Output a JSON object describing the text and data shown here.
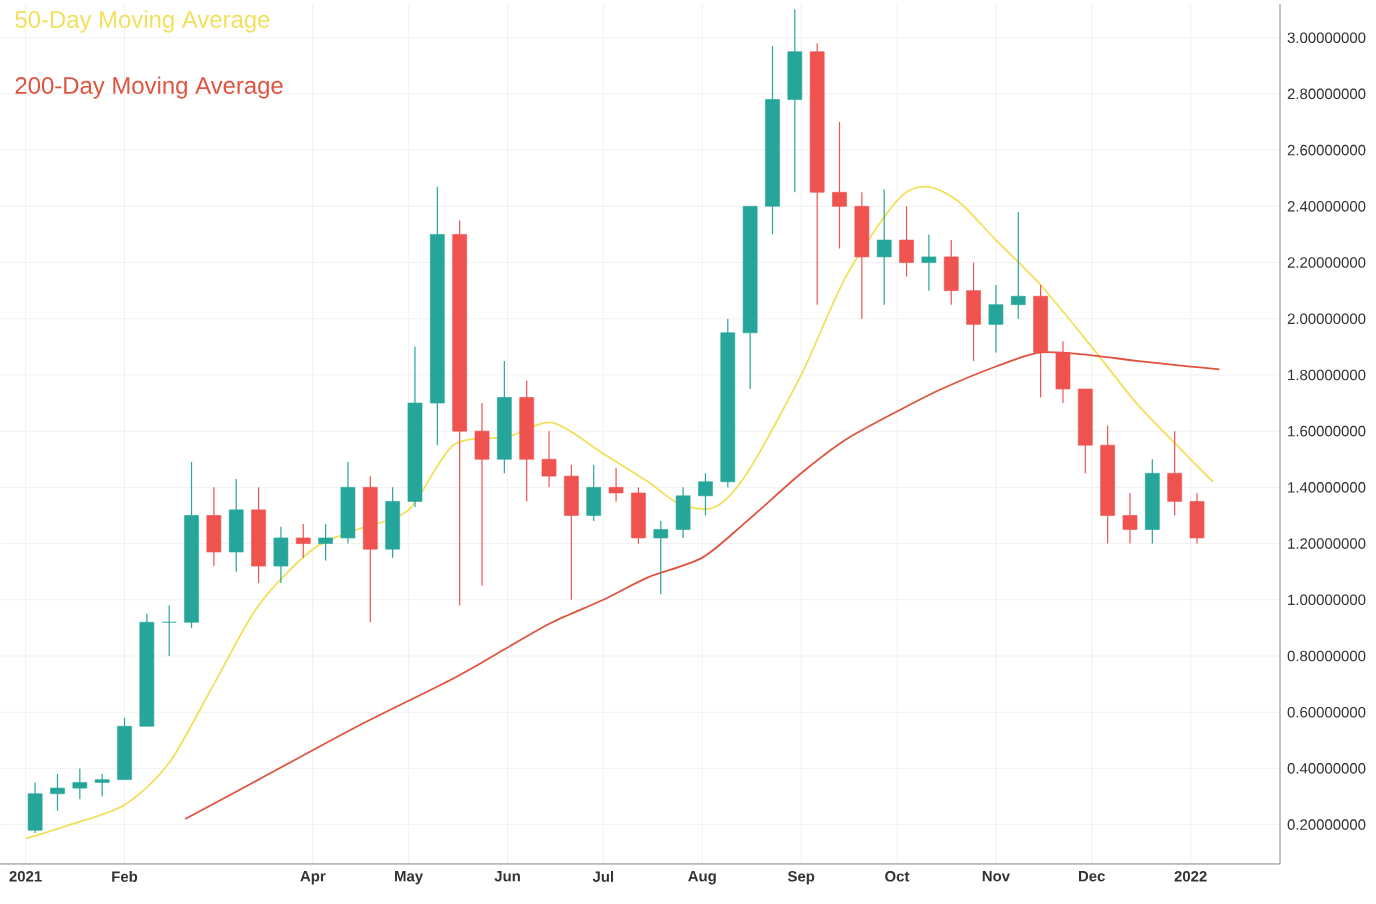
{
  "chart_data": {
    "type": "candlestick",
    "x": [
      "2021-01-04",
      "2021-01-11",
      "2021-01-18",
      "2021-01-25",
      "2021-02-01",
      "2021-02-08",
      "2021-02-15",
      "2021-02-22",
      "2021-03-01",
      "2021-03-08",
      "2021-03-15",
      "2021-03-22",
      "2021-03-29",
      "2021-04-05",
      "2021-04-12",
      "2021-04-19",
      "2021-04-26",
      "2021-05-03",
      "2021-05-10",
      "2021-05-17",
      "2021-05-24",
      "2021-05-31",
      "2021-06-07",
      "2021-06-14",
      "2021-06-21",
      "2021-06-28",
      "2021-07-05",
      "2021-07-12",
      "2021-07-19",
      "2021-07-26",
      "2021-08-02",
      "2021-08-09",
      "2021-08-16",
      "2021-08-23",
      "2021-08-30",
      "2021-09-06",
      "2021-09-13",
      "2021-09-20",
      "2021-09-27",
      "2021-10-04",
      "2021-10-11",
      "2021-10-18",
      "2021-10-25",
      "2021-11-01",
      "2021-11-08",
      "2021-11-15",
      "2021-11-22",
      "2021-11-29",
      "2021-12-06",
      "2021-12-13",
      "2021-12-20",
      "2021-12-27",
      "2022-01-03"
    ],
    "ohlc": [
      [
        0.18,
        0.35,
        0.17,
        0.31
      ],
      [
        0.31,
        0.38,
        0.25,
        0.33
      ],
      [
        0.33,
        0.4,
        0.29,
        0.35
      ],
      [
        0.35,
        0.38,
        0.3,
        0.36
      ],
      [
        0.36,
        0.58,
        0.36,
        0.55
      ],
      [
        0.55,
        0.95,
        0.55,
        0.92
      ],
      [
        0.92,
        0.98,
        0.8,
        0.92
      ],
      [
        0.92,
        1.49,
        0.9,
        1.3
      ],
      [
        1.3,
        1.4,
        1.12,
        1.17
      ],
      [
        1.17,
        1.43,
        1.1,
        1.32
      ],
      [
        1.32,
        1.4,
        1.06,
        1.12
      ],
      [
        1.12,
        1.26,
        1.06,
        1.22
      ],
      [
        1.22,
        1.27,
        1.15,
        1.2
      ],
      [
        1.2,
        1.27,
        1.14,
        1.22
      ],
      [
        1.22,
        1.49,
        1.2,
        1.4
      ],
      [
        1.4,
        1.44,
        0.92,
        1.18
      ],
      [
        1.18,
        1.4,
        1.15,
        1.35
      ],
      [
        1.35,
        1.9,
        1.33,
        1.7
      ],
      [
        1.7,
        2.47,
        1.55,
        2.3
      ],
      [
        2.3,
        2.35,
        0.98,
        1.6
      ],
      [
        1.6,
        1.7,
        1.05,
        1.5
      ],
      [
        1.5,
        1.85,
        1.45,
        1.72
      ],
      [
        1.72,
        1.78,
        1.35,
        1.5
      ],
      [
        1.5,
        1.6,
        1.4,
        1.44
      ],
      [
        1.44,
        1.48,
        1.0,
        1.3
      ],
      [
        1.3,
        1.48,
        1.28,
        1.4
      ],
      [
        1.4,
        1.47,
        1.35,
        1.38
      ],
      [
        1.38,
        1.4,
        1.2,
        1.22
      ],
      [
        1.22,
        1.28,
        1.02,
        1.25
      ],
      [
        1.25,
        1.4,
        1.22,
        1.37
      ],
      [
        1.37,
        1.45,
        1.3,
        1.42
      ],
      [
        1.42,
        2.0,
        1.4,
        1.95
      ],
      [
        1.95,
        2.4,
        1.75,
        2.4
      ],
      [
        2.4,
        2.97,
        2.3,
        2.78
      ],
      [
        2.78,
        3.1,
        2.45,
        2.95
      ],
      [
        2.95,
        2.98,
        2.05,
        2.45
      ],
      [
        2.45,
        2.7,
        2.25,
        2.4
      ],
      [
        2.4,
        2.45,
        2.0,
        2.22
      ],
      [
        2.22,
        2.46,
        2.05,
        2.28
      ],
      [
        2.28,
        2.4,
        2.15,
        2.2
      ],
      [
        2.2,
        2.3,
        2.1,
        2.22
      ],
      [
        2.22,
        2.28,
        2.05,
        2.1
      ],
      [
        2.1,
        2.2,
        1.85,
        1.98
      ],
      [
        1.98,
        2.12,
        1.88,
        2.05
      ],
      [
        2.05,
        2.38,
        2.0,
        2.08
      ],
      [
        2.08,
        2.12,
        1.72,
        1.88
      ],
      [
        1.88,
        1.92,
        1.7,
        1.75
      ],
      [
        1.75,
        1.75,
        1.45,
        1.55
      ],
      [
        1.55,
        1.62,
        1.2,
        1.3
      ],
      [
        1.3,
        1.38,
        1.2,
        1.25
      ],
      [
        1.25,
        1.5,
        1.2,
        1.45
      ],
      [
        1.45,
        1.6,
        1.3,
        1.35
      ],
      [
        1.35,
        1.38,
        1.2,
        1.22
      ]
    ],
    "colors": [
      "#26a69a",
      "#26a69a",
      "#26a69a",
      "#26a69a",
      "#26a69a",
      "#26a69a",
      "#26a69a",
      "#26a69a",
      "#ef5350",
      "#26a69a",
      "#ef5350",
      "#26a69a",
      "#ef5350",
      "#26a69a",
      "#26a69a",
      "#ef5350",
      "#26a69a",
      "#26a69a",
      "#26a69a",
      "#ef5350",
      "#ef5350",
      "#26a69a",
      "#ef5350",
      "#ef5350",
      "#ef5350",
      "#26a69a",
      "#ef5350",
      "#ef5350",
      "#26a69a",
      "#26a69a",
      "#26a69a",
      "#26a69a",
      "#26a69a",
      "#26a69a",
      "#26a69a",
      "#ef5350",
      "#ef5350",
      "#ef5350",
      "#26a69a",
      "#ef5350",
      "#26a69a",
      "#ef5350",
      "#ef5350",
      "#26a69a",
      "#26a69a",
      "#ef5350",
      "#ef5350",
      "#ef5350",
      "#ef5350",
      "#ef5350",
      "#26a69a",
      "#ef5350",
      "#ef5350"
    ],
    "series": [
      {
        "name": "50-Day Moving Average",
        "type": "line",
        "color": "#f2df5a",
        "x": [
          "2021-01-01",
          "2021-01-15",
          "2021-02-01",
          "2021-02-15",
          "2021-03-01",
          "2021-03-15",
          "2021-04-01",
          "2021-04-15",
          "2021-05-01",
          "2021-05-15",
          "2021-06-01",
          "2021-06-15",
          "2021-07-01",
          "2021-07-15",
          "2021-07-25",
          "2021-08-05",
          "2021-08-15",
          "2021-09-01",
          "2021-09-15",
          "2021-10-01",
          "2021-10-10",
          "2021-10-20",
          "2021-11-01",
          "2021-11-15",
          "2021-12-01",
          "2021-12-15",
          "2022-01-01",
          "2022-01-08"
        ],
        "values": [
          0.15,
          0.2,
          0.27,
          0.42,
          0.7,
          0.98,
          1.18,
          1.25,
          1.32,
          1.55,
          1.58,
          1.63,
          1.52,
          1.42,
          1.34,
          1.33,
          1.45,
          1.8,
          2.15,
          2.42,
          2.47,
          2.42,
          2.28,
          2.12,
          1.9,
          1.7,
          1.5,
          1.42
        ]
      },
      {
        "name": "200-Day Moving Average",
        "type": "line",
        "color": "#e0533f",
        "x": [
          "2021-02-20",
          "2021-03-15",
          "2021-04-15",
          "2021-05-15",
          "2021-06-01",
          "2021-06-15",
          "2021-07-01",
          "2021-07-15",
          "2021-08-01",
          "2021-08-15",
          "2021-09-01",
          "2021-09-15",
          "2021-10-01",
          "2021-10-15",
          "2021-11-01",
          "2021-11-15",
          "2021-12-01",
          "2021-12-15",
          "2022-01-01",
          "2022-01-10"
        ],
        "values": [
          0.22,
          0.36,
          0.55,
          0.72,
          0.83,
          0.92,
          1.0,
          1.08,
          1.15,
          1.28,
          1.45,
          1.57,
          1.67,
          1.75,
          1.83,
          1.88,
          1.87,
          1.85,
          1.83,
          1.82
        ]
      }
    ],
    "xlim": [
      "2020-12-24",
      "2022-01-29"
    ],
    "ylim": [
      0.06,
      3.12
    ],
    "xticks": [
      {
        "value": "2021-01-01",
        "label": "2021"
      },
      {
        "value": "2021-02-01",
        "label": "Feb"
      },
      {
        "value": "2021-04-01",
        "label": "Apr"
      },
      {
        "value": "2021-05-01",
        "label": "May"
      },
      {
        "value": "2021-06-01",
        "label": "Jun"
      },
      {
        "value": "2021-07-01",
        "label": "Jul"
      },
      {
        "value": "2021-08-01",
        "label": "Aug"
      },
      {
        "value": "2021-09-01",
        "label": "Sep"
      },
      {
        "value": "2021-10-01",
        "label": "Oct"
      },
      {
        "value": "2021-11-01",
        "label": "Nov"
      },
      {
        "value": "2021-12-01",
        "label": "Dec"
      },
      {
        "value": "2022-01-01",
        "label": "2022"
      }
    ],
    "yticks": [
      {
        "value": 0.2,
        "label": "0.20000000"
      },
      {
        "value": 0.4,
        "label": "0.40000000"
      },
      {
        "value": 0.6,
        "label": "0.60000000"
      },
      {
        "value": 0.8,
        "label": "0.80000000"
      },
      {
        "value": 1.0,
        "label": "1.00000000"
      },
      {
        "value": 1.2,
        "label": "1.20000000"
      },
      {
        "value": 1.4,
        "label": "1.40000000"
      },
      {
        "value": 1.6,
        "label": "1.60000000"
      },
      {
        "value": 1.8,
        "label": "1.80000000"
      },
      {
        "value": 2.0,
        "label": "2.00000000"
      },
      {
        "value": 2.2,
        "label": "2.20000000"
      },
      {
        "value": 2.4,
        "label": "2.40000000"
      },
      {
        "value": 2.6,
        "label": "2.60000000"
      },
      {
        "value": 2.8,
        "label": "2.80000000"
      },
      {
        "value": 3.0,
        "label": "3.00000000"
      }
    ],
    "grid": true,
    "legend": "top left"
  }
}
